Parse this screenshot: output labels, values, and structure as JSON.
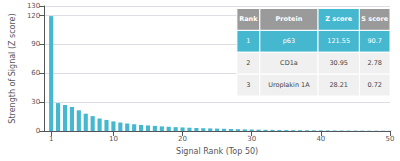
{
  "chart_data": {
    "type": "bar",
    "x": [
      1,
      2,
      3,
      4,
      5,
      6,
      7,
      8,
      9,
      10,
      11,
      12,
      13,
      14,
      15,
      16,
      17,
      18,
      19,
      20,
      21,
      22,
      23,
      24,
      25,
      26,
      27,
      28,
      29,
      30,
      31,
      32,
      33,
      34,
      35,
      36,
      37,
      38,
      39,
      40,
      41,
      42,
      43,
      44,
      45,
      46,
      47,
      48,
      49,
      50
    ],
    "values": [
      119.5,
      29.0,
      27.0,
      25.0,
      21.5,
      18.0,
      15.5,
      13.0,
      11.5,
      10.0,
      8.8,
      7.8,
      7.0,
      6.3,
      5.8,
      5.3,
      4.8,
      4.4,
      4.0,
      3.7,
      3.4,
      3.1,
      2.9,
      2.7,
      2.5,
      2.3,
      2.1,
      1.9,
      1.7,
      1.55,
      1.4,
      1.25,
      1.15,
      1.05,
      0.95,
      0.88,
      0.82,
      0.76,
      0.7,
      0.65,
      0.6,
      0.55,
      0.5,
      0.46,
      0.42,
      0.38,
      0.34,
      0.3,
      0.26,
      0.22
    ],
    "color": "#45b8d0",
    "xlabel": "Signal Rank (Top 50)",
    "ylabel": "Strength of Signal (Z score)",
    "xlim": [
      0,
      50
    ],
    "ylim": [
      0,
      130
    ],
    "xticks": [
      1,
      10,
      20,
      30,
      40,
      50
    ],
    "yticks": [
      0,
      30,
      60,
      90,
      120
    ],
    "grid": true,
    "table_headers": [
      "Rank",
      "Protein",
      "Z score",
      "S score"
    ],
    "table_rows": [
      [
        "1",
        "p63",
        "121.55",
        "90.7"
      ],
      [
        "2",
        "CD1a",
        "30.95",
        "2.78"
      ],
      [
        "3",
        "Uroplakin 1A",
        "28.21",
        "0.72"
      ]
    ]
  }
}
